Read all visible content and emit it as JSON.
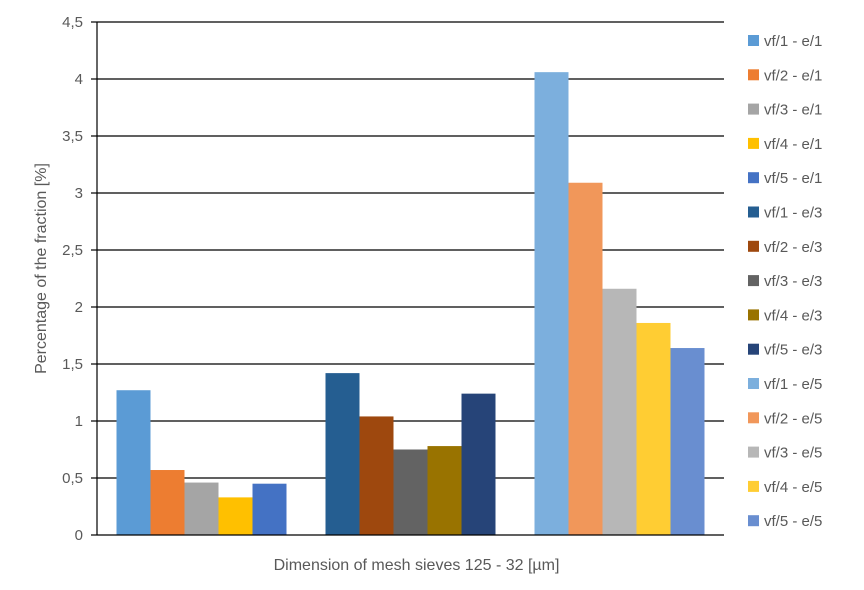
{
  "chart_data": {
    "type": "bar",
    "title": "",
    "xlabel": "Dimension of mesh sieves 125 - 32 [µm]",
    "ylabel": "Percentage of the fraction [%]",
    "ylim": [
      0,
      4.5
    ],
    "yticks": [
      "0",
      "0,5",
      "1",
      "1,5",
      "2",
      "2,5",
      "3",
      "3,5",
      "4",
      "4,5"
    ],
    "grid": true,
    "legend_position": "right",
    "series": [
      {
        "name": "vf/1 - e/1",
        "color": "#5B9BD5",
        "values": [
          1.27,
          null,
          null
        ]
      },
      {
        "name": "vf/2 - e/1",
        "color": "#ED7D31",
        "values": [
          0.57,
          null,
          null
        ]
      },
      {
        "name": "vf/3 - e/1",
        "color": "#A5A5A5",
        "values": [
          0.46,
          null,
          null
        ]
      },
      {
        "name": "vf/4 - e/1",
        "color": "#FFC000",
        "values": [
          0.33,
          null,
          null
        ]
      },
      {
        "name": "vf/5 - e/1",
        "color": "#4472C4",
        "values": [
          0.45,
          null,
          null
        ]
      },
      {
        "name": "vf/1 - e/3",
        "color": "#255E91",
        "values": [
          null,
          1.42,
          null
        ]
      },
      {
        "name": "vf/2 - e/3",
        "color": "#9E480E",
        "values": [
          null,
          1.04,
          null
        ]
      },
      {
        "name": "vf/3 - e/3",
        "color": "#636363",
        "values": [
          null,
          0.75,
          null
        ]
      },
      {
        "name": "vf/4 - e/3",
        "color": "#997300",
        "values": [
          null,
          0.78,
          null
        ]
      },
      {
        "name": "vf/5 - e/3",
        "color": "#264478",
        "values": [
          null,
          1.24,
          null
        ]
      },
      {
        "name": "vf/1 - e/5",
        "color": "#7CAFDD",
        "values": [
          null,
          null,
          4.06
        ]
      },
      {
        "name": "vf/2 - e/5",
        "color": "#F1975A",
        "values": [
          null,
          null,
          3.09
        ]
      },
      {
        "name": "vf/3 - e/5",
        "color": "#B7B7B7",
        "values": [
          null,
          null,
          2.16
        ]
      },
      {
        "name": "vf/4 - e/5",
        "color": "#FFCD33",
        "values": [
          null,
          null,
          1.86
        ]
      },
      {
        "name": "vf/5 - e/5",
        "color": "#698ED0",
        "values": [
          null,
          null,
          1.64
        ]
      }
    ]
  }
}
